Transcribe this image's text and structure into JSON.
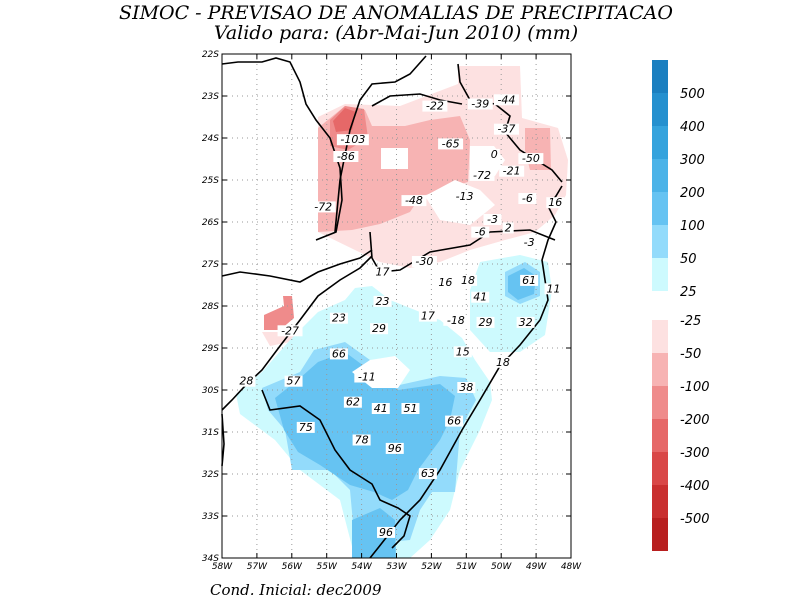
{
  "title_line1": "SIMOC - PREVISAO DE ANOMALIAS DE PRECIPITACAO",
  "title_line2": "Valido para: (Abr-Mai-Jun 2010) (mm)",
  "footer": "Cond. Inicial: dec2009",
  "lat_labels": [
    "22S",
    "23S",
    "24S",
    "25S",
    "26S",
    "27S",
    "28S",
    "29S",
    "30S",
    "31S",
    "32S",
    "33S",
    "34S"
  ],
  "lon_labels": [
    "58W",
    "57W",
    "56W",
    "55W",
    "54W",
    "53W",
    "52W",
    "51W",
    "50W",
    "49W",
    "48W"
  ],
  "legend_positive": [
    {
      "label": "500",
      "color": "#1b7fc0"
    },
    {
      "label": "400",
      "color": "#2590cf"
    },
    {
      "label": "300",
      "color": "#35a3dd"
    },
    {
      "label": "200",
      "color": "#4bb3e8"
    },
    {
      "label": "100",
      "color": "#66c3f2"
    },
    {
      "label": "50",
      "color": "#93dbfb"
    },
    {
      "label": "25",
      "color": "#cdfafe"
    }
  ],
  "legend_negative": [
    {
      "label": "-25",
      "color": "#fde1e1"
    },
    {
      "label": "-50",
      "color": "#f7b3b3"
    },
    {
      "label": "-100",
      "color": "#ef8b8b"
    },
    {
      "label": "-200",
      "color": "#e66868"
    },
    {
      "label": "-300",
      "color": "#d94747"
    },
    {
      "label": "-400",
      "color": "#c92f2f"
    },
    {
      "label": "-500",
      "color": "#b81f1f"
    }
  ],
  "value_labels": [
    {
      "lon": -51.9,
      "lat": -23.3,
      "text": "-22"
    },
    {
      "lon": -50.6,
      "lat": -23.25,
      "text": "-39"
    },
    {
      "lon": -49.85,
      "lat": -23.15,
      "text": "-44"
    },
    {
      "lon": -49.85,
      "lat": -23.85,
      "text": "-37"
    },
    {
      "lon": -54.25,
      "lat": -24.1,
      "text": "-103"
    },
    {
      "lon": -54.45,
      "lat": -24.5,
      "text": "-86"
    },
    {
      "lon": -51.45,
      "lat": -24.2,
      "text": "-65"
    },
    {
      "lon": -50.2,
      "lat": -24.45,
      "text": "0"
    },
    {
      "lon": -49.15,
      "lat": -24.55,
      "text": "-50"
    },
    {
      "lon": -50.55,
      "lat": -24.95,
      "text": "-72"
    },
    {
      "lon": -49.7,
      "lat": -24.85,
      "text": "-21"
    },
    {
      "lon": -49.25,
      "lat": -25.5,
      "text": "-6"
    },
    {
      "lon": -48.45,
      "lat": -25.6,
      "text": "16"
    },
    {
      "lon": -55.1,
      "lat": -25.7,
      "text": "-72"
    },
    {
      "lon": -52.5,
      "lat": -25.55,
      "text": "-48"
    },
    {
      "lon": -51.05,
      "lat": -25.45,
      "text": "-13"
    },
    {
      "lon": -50.25,
      "lat": -26.0,
      "text": "-3"
    },
    {
      "lon": -49.8,
      "lat": -26.2,
      "text": "2"
    },
    {
      "lon": -50.6,
      "lat": -26.3,
      "text": "-6"
    },
    {
      "lon": -49.2,
      "lat": -26.55,
      "text": "-3"
    },
    {
      "lon": -52.2,
      "lat": -27.0,
      "text": "-30"
    },
    {
      "lon": -53.4,
      "lat": -27.25,
      "text": "17"
    },
    {
      "lon": -51.6,
      "lat": -27.5,
      "text": "16"
    },
    {
      "lon": -50.95,
      "lat": -27.45,
      "text": "18"
    },
    {
      "lon": -49.2,
      "lat": -27.45,
      "text": "61"
    },
    {
      "lon": -48.5,
      "lat": -27.65,
      "text": "11"
    },
    {
      "lon": -50.6,
      "lat": -27.85,
      "text": "41"
    },
    {
      "lon": -53.4,
      "lat": -27.95,
      "text": "23"
    },
    {
      "lon": -52.1,
      "lat": -28.3,
      "text": "17"
    },
    {
      "lon": -51.3,
      "lat": -28.4,
      "text": "-18"
    },
    {
      "lon": -50.45,
      "lat": -28.45,
      "text": "29"
    },
    {
      "lon": -49.3,
      "lat": -28.45,
      "text": "32"
    },
    {
      "lon": -56.05,
      "lat": -28.65,
      "text": "-27"
    },
    {
      "lon": -54.65,
      "lat": -28.35,
      "text": "23"
    },
    {
      "lon": -53.5,
      "lat": -28.6,
      "text": "29"
    },
    {
      "lon": -51.1,
      "lat": -29.15,
      "text": "15"
    },
    {
      "lon": -54.65,
      "lat": -29.2,
      "text": "66"
    },
    {
      "lon": -49.95,
      "lat": -29.4,
      "text": "18"
    },
    {
      "lon": -53.85,
      "lat": -29.75,
      "text": "-11"
    },
    {
      "lon": -57.3,
      "lat": -29.85,
      "text": "28"
    },
    {
      "lon": -55.95,
      "lat": -29.85,
      "text": "57"
    },
    {
      "lon": -51.0,
      "lat": -30.0,
      "text": "38"
    },
    {
      "lon": -54.25,
      "lat": -30.35,
      "text": "62"
    },
    {
      "lon": -53.45,
      "lat": -30.5,
      "text": "41"
    },
    {
      "lon": -52.6,
      "lat": -30.5,
      "text": "51"
    },
    {
      "lon": -51.35,
      "lat": -30.8,
      "text": "66"
    },
    {
      "lon": -55.6,
      "lat": -30.95,
      "text": "75"
    },
    {
      "lon": -54.0,
      "lat": -31.25,
      "text": "78"
    },
    {
      "lon": -53.05,
      "lat": -31.45,
      "text": "96"
    },
    {
      "lon": -52.1,
      "lat": -32.05,
      "text": "63"
    },
    {
      "lon": -53.3,
      "lat": -33.45,
      "text": "96"
    }
  ]
}
